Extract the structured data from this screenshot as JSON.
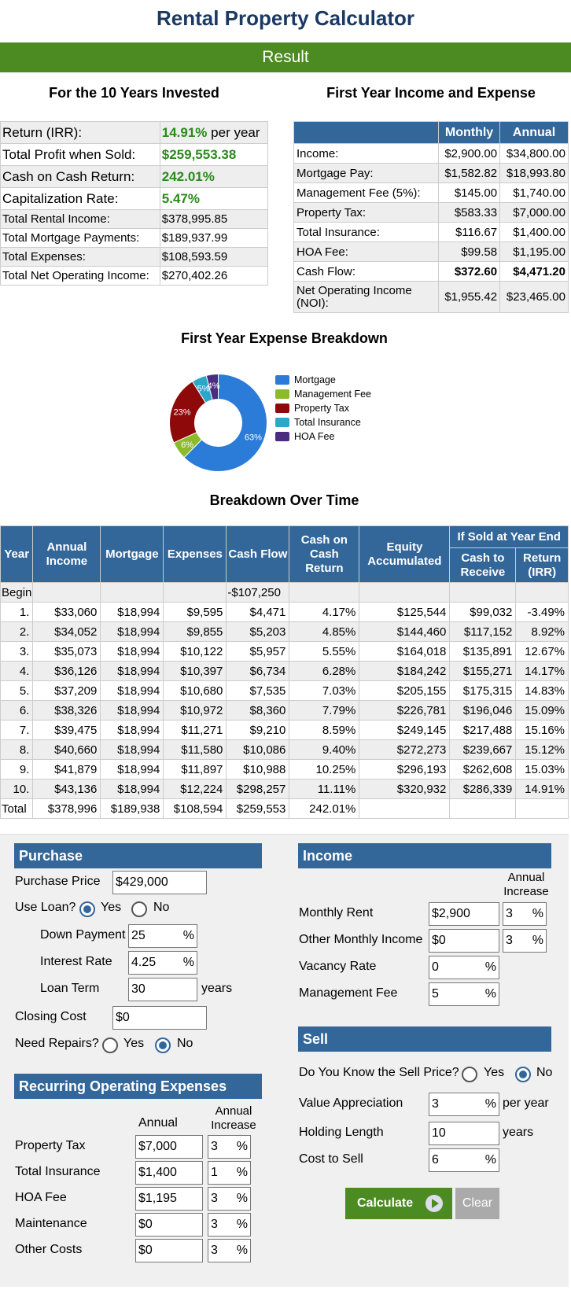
{
  "title": "Rental Property Calculator",
  "result_label": "Result",
  "summary": {
    "heading": "For the 10 Years Invested",
    "irr": {
      "label": "Return (IRR):",
      "value": "14.91%",
      "suffix": " per year"
    },
    "profit": {
      "label": "Total Profit when Sold:",
      "value": "$259,553.38"
    },
    "coc": {
      "label": "Cash on Cash Return:",
      "value": "242.01%"
    },
    "cap": {
      "label": "Capitalization Rate:",
      "value": "5.47%"
    },
    "rows": [
      {
        "label": "Total Rental Income:",
        "value": "$378,995.85"
      },
      {
        "label": "Total Mortgage Payments:",
        "value": "$189,937.99"
      },
      {
        "label": "Total Expenses:",
        "value": "$108,593.59"
      },
      {
        "label": "Total Net Operating Income:",
        "value": "$270,402.26"
      }
    ]
  },
  "first_year": {
    "heading": "First Year Income and Expense",
    "col_monthly": "Monthly",
    "col_annual": "Annual",
    "rows": [
      {
        "label": "Income:",
        "monthly": "$2,900.00",
        "annual": "$34,800.00"
      },
      {
        "label": "Mortgage Pay:",
        "monthly": "$1,582.82",
        "annual": "$18,993.80"
      },
      {
        "label": "Management Fee (5%):",
        "monthly": "$145.00",
        "annual": "$1,740.00"
      },
      {
        "label": "Property Tax:",
        "monthly": "$583.33",
        "annual": "$7,000.00"
      },
      {
        "label": "Total Insurance:",
        "monthly": "$116.67",
        "annual": "$1,400.00"
      },
      {
        "label": "HOA Fee:",
        "monthly": "$99.58",
        "annual": "$1,195.00"
      },
      {
        "label": "Cash Flow:",
        "monthly": "$372.60",
        "annual": "$4,471.20"
      },
      {
        "label": "Net Operating Income (NOI):",
        "monthly": "$1,955.42",
        "annual": "$23,465.00"
      }
    ]
  },
  "expense_breakdown": {
    "heading": "First Year Expense Breakdown",
    "slices": [
      {
        "name": "Mortgage",
        "pct": 63,
        "label": "63%",
        "color": "#2b7bd8"
      },
      {
        "name": "Management Fee",
        "pct": 6,
        "label": "6%",
        "color": "#8cbb2a"
      },
      {
        "name": "Property Tax",
        "pct": 23,
        "label": "23%",
        "color": "#8e0a0a"
      },
      {
        "name": "Total Insurance",
        "pct": 5,
        "label": "5%",
        "color": "#2aa7c9"
      },
      {
        "name": "HOA Fee",
        "pct": 4,
        "label": "4%",
        "color": "#4b2d7f"
      }
    ]
  },
  "over_time": {
    "heading": "Breakdown Over Time",
    "headers": {
      "year": "Year",
      "income": "Annual Income",
      "mortgage": "Mortgage",
      "expenses": "Expenses",
      "cashflow": "Cash Flow",
      "coc": "Cash on Cash Return",
      "equity": "Equity Accumulated",
      "group": "If Sold at Year End",
      "cash_receive": "Cash to Receive",
      "irr": "Return (IRR)"
    },
    "begin": {
      "year": "Begin",
      "cashflow": "-$107,250"
    },
    "rows": [
      [
        "1.",
        "$33,060",
        "$18,994",
        "$9,595",
        "$4,471",
        "4.17%",
        "$125,544",
        "$99,032",
        "-3.49%"
      ],
      [
        "2.",
        "$34,052",
        "$18,994",
        "$9,855",
        "$5,203",
        "4.85%",
        "$144,460",
        "$117,152",
        "8.92%"
      ],
      [
        "3.",
        "$35,073",
        "$18,994",
        "$10,122",
        "$5,957",
        "5.55%",
        "$164,018",
        "$135,891",
        "12.67%"
      ],
      [
        "4.",
        "$36,126",
        "$18,994",
        "$10,397",
        "$6,734",
        "6.28%",
        "$184,242",
        "$155,271",
        "14.17%"
      ],
      [
        "5.",
        "$37,209",
        "$18,994",
        "$10,680",
        "$7,535",
        "7.03%",
        "$205,155",
        "$175,315",
        "14.83%"
      ],
      [
        "6.",
        "$38,326",
        "$18,994",
        "$10,972",
        "$8,360",
        "7.79%",
        "$226,781",
        "$196,046",
        "15.09%"
      ],
      [
        "7.",
        "$39,475",
        "$18,994",
        "$11,271",
        "$9,210",
        "8.59%",
        "$249,145",
        "$217,488",
        "15.16%"
      ],
      [
        "8.",
        "$40,660",
        "$18,994",
        "$11,580",
        "$10,086",
        "9.40%",
        "$272,273",
        "$239,667",
        "15.12%"
      ],
      [
        "9.",
        "$41,879",
        "$18,994",
        "$11,897",
        "$10,988",
        "10.25%",
        "$296,193",
        "$262,608",
        "15.03%"
      ],
      [
        "10.",
        "$43,136",
        "$18,994",
        "$12,224",
        "$298,257",
        "11.11%",
        "$320,932",
        "$286,339",
        "14.91%"
      ]
    ],
    "total": [
      "Total",
      "$378,996",
      "$189,938",
      "$108,594",
      "$259,553",
      "242.01%",
      "",
      "",
      ""
    ]
  },
  "form": {
    "purchase": {
      "heading": "Purchase",
      "price_label": "Purchase Price",
      "price": "$429,000",
      "use_loan_label": "Use Loan?",
      "yes": "Yes",
      "no": "No",
      "down_label": "Down Payment",
      "down": "25",
      "rate_label": "Interest Rate",
      "rate": "4.25",
      "term_label": "Loan Term",
      "term": "30",
      "years": "years",
      "closing_label": "Closing Cost",
      "closing": "$0",
      "repairs_label": "Need Repairs?"
    },
    "recurring": {
      "heading": "Recurring Operating Expenses",
      "col_annual": "Annual",
      "col_increase": "Annual Increase",
      "rows": [
        {
          "label": "Property Tax",
          "value": "$7,000",
          "inc": "3"
        },
        {
          "label": "Total Insurance",
          "value": "$1,400",
          "inc": "1"
        },
        {
          "label": "HOA Fee",
          "value": "$1,195",
          "inc": "3"
        },
        {
          "label": "Maintenance",
          "value": "$0",
          "inc": "3"
        },
        {
          "label": "Other Costs",
          "value": "$0",
          "inc": "3"
        }
      ]
    },
    "income": {
      "heading": "Income",
      "col_increase": "Annual Increase",
      "rent_label": "Monthly Rent",
      "rent": "$2,900",
      "rent_inc": "3",
      "other_label": "Other Monthly Income",
      "other": "$0",
      "other_inc": "3",
      "vacancy_label": "Vacancy Rate",
      "vacancy": "0",
      "mgmt_label": "Management Fee",
      "mgmt": "5"
    },
    "sell": {
      "heading": "Sell",
      "know_label": "Do You Know the Sell Price?",
      "yes": "Yes",
      "no": "No",
      "appr_label": "Value Appreciation",
      "appr": "3",
      "per_year": "per year",
      "hold_label": "Holding Length",
      "hold": "10",
      "years": "years",
      "cost_label": "Cost to Sell",
      "cost": "6"
    },
    "pct": "%",
    "calculate": "Calculate",
    "clear": "Clear"
  }
}
